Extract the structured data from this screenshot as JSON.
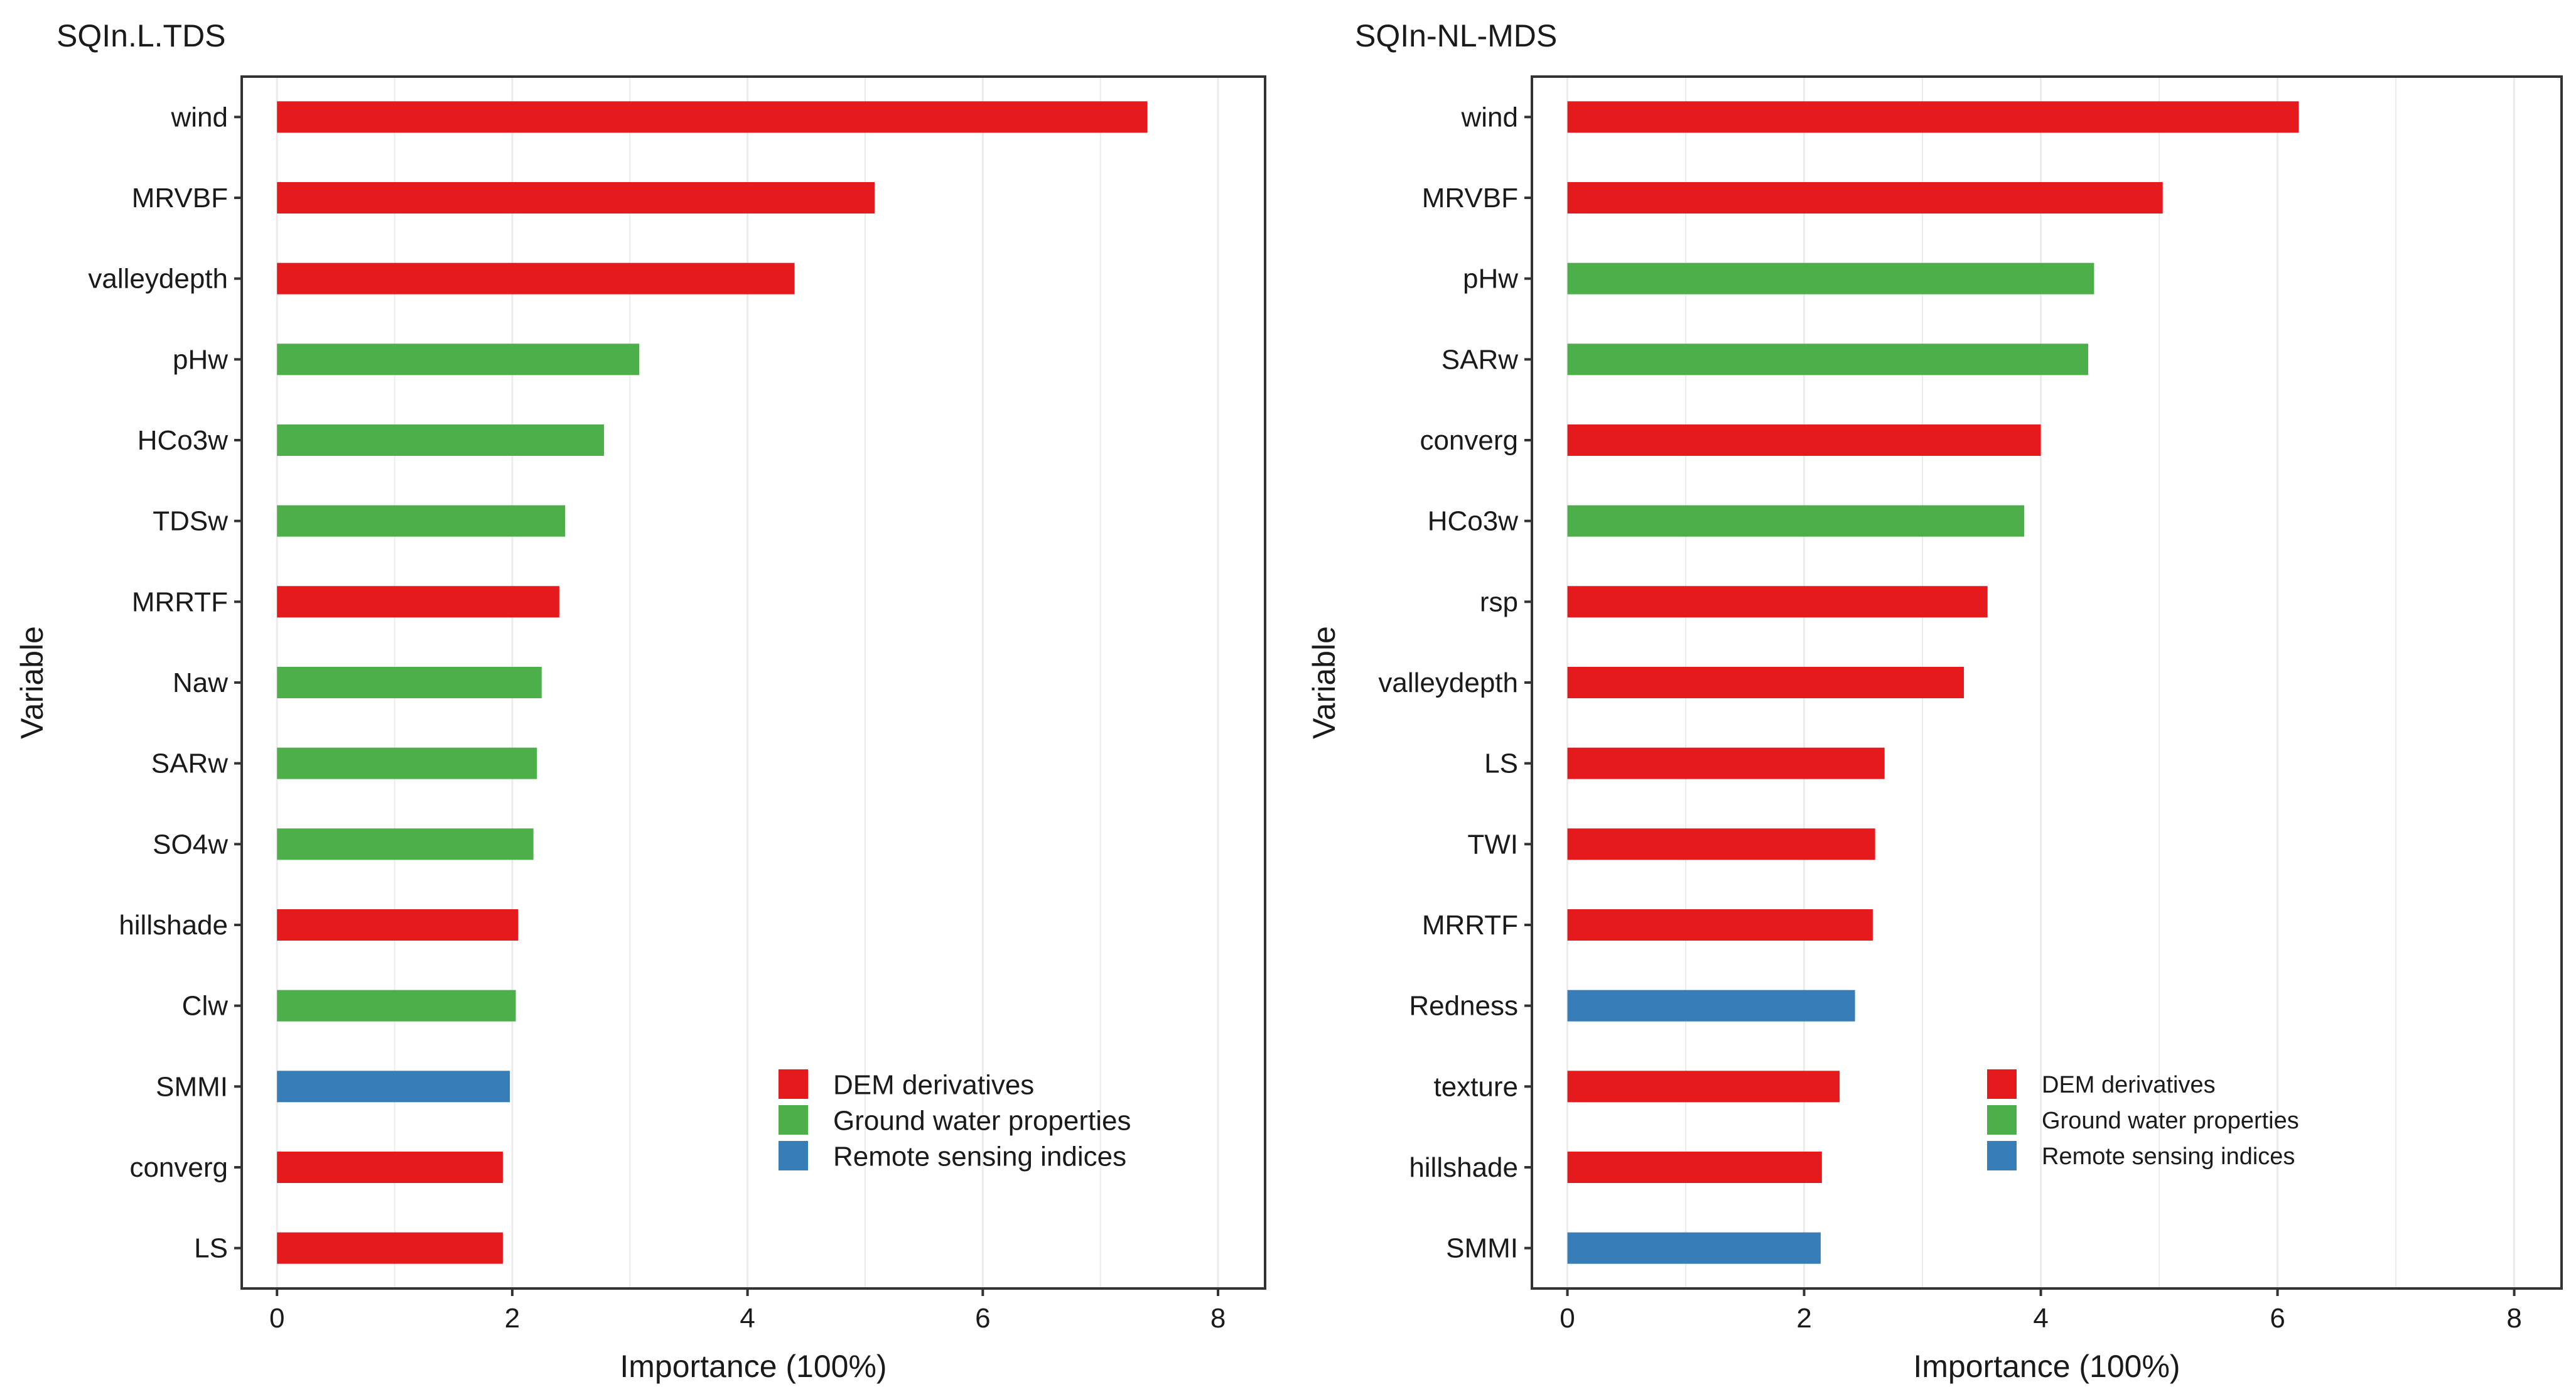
{
  "colors": {
    "dem": "#e41a1c",
    "groundwater": "#4daf4a",
    "remote": "#377eb8",
    "grid": "#ebebeb",
    "frame": "#333333"
  },
  "chart_data": [
    {
      "type": "bar",
      "orientation": "horizontal",
      "title": "SQIn.L.TDS",
      "xlabel": "Importance (100%)",
      "ylabel": "Variable",
      "xlim": [
        -0.3,
        8.4
      ],
      "xticks": [
        0,
        2,
        4,
        6,
        8
      ],
      "grid": true,
      "legend_position": "bottom-right",
      "legend": [
        {
          "label": "DEM derivatives",
          "group": "dem"
        },
        {
          "label": "Ground water properties",
          "group": "groundwater"
        },
        {
          "label": "Remote sensing indices",
          "group": "remote"
        }
      ],
      "categories": [
        "wind",
        "MRVBF",
        "valleydepth",
        "pHw",
        "HCo3w",
        "TDSw",
        "MRRTF",
        "Naw",
        "SARw",
        "SO4w",
        "hillshade",
        "Clw",
        "SMMI",
        "converg",
        "LS"
      ],
      "values": [
        7.4,
        5.08,
        4.4,
        3.08,
        2.78,
        2.45,
        2.4,
        2.25,
        2.21,
        2.18,
        2.05,
        2.03,
        1.98,
        1.92,
        1.92
      ],
      "groups": [
        "dem",
        "dem",
        "dem",
        "groundwater",
        "groundwater",
        "groundwater",
        "dem",
        "groundwater",
        "groundwater",
        "groundwater",
        "dem",
        "groundwater",
        "remote",
        "dem",
        "dem"
      ]
    },
    {
      "type": "bar",
      "orientation": "horizontal",
      "title": "SQIn-NL-MDS",
      "xlabel": "Importance (100%)",
      "ylabel": "Variable",
      "xlim": [
        -0.3,
        8.4
      ],
      "xticks": [
        0,
        2,
        4,
        6,
        8
      ],
      "grid": true,
      "legend_position": "bottom-right",
      "legend": [
        {
          "label": "DEM derivatives",
          "group": "dem"
        },
        {
          "label": "Ground water properties",
          "group": "groundwater"
        },
        {
          "label": "Remote sensing indices",
          "group": "remote"
        }
      ],
      "categories": [
        "wind",
        "MRVBF",
        "pHw",
        "SARw",
        "converg",
        "HCo3w",
        "rsp",
        "valleydepth",
        "LS",
        "TWI",
        "MRRTF",
        "Redness",
        "texture",
        "hillshade",
        "SMMI"
      ],
      "values": [
        6.18,
        5.03,
        4.45,
        4.4,
        4.0,
        3.86,
        3.55,
        3.35,
        2.68,
        2.6,
        2.58,
        2.43,
        2.3,
        2.15,
        2.14
      ],
      "groups": [
        "dem",
        "dem",
        "groundwater",
        "groundwater",
        "dem",
        "groundwater",
        "dem",
        "dem",
        "dem",
        "dem",
        "dem",
        "remote",
        "dem",
        "dem",
        "remote"
      ]
    }
  ]
}
